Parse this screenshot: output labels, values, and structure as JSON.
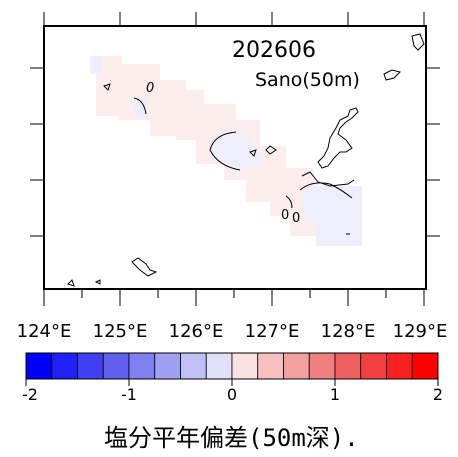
{
  "map": {
    "period": "202606",
    "station": "Sano(50m)",
    "contour_labels": [
      "0",
      "0",
      "0"
    ],
    "lon_ticks": [
      "124°E",
      "125°E",
      "126°E",
      "127°E",
      "128°E",
      "129°E"
    ],
    "anomaly_cells": [
      {
        "lon": 125.5,
        "lat": 27.0,
        "value": -0.15
      },
      {
        "lon": 125.9,
        "lat": 26.7,
        "value": -0.1
      },
      {
        "lon": 126.5,
        "lat": 25.9,
        "value": -0.12
      },
      {
        "lon": 127.5,
        "lat": 26.0,
        "value": -0.1
      },
      {
        "lon": 128.3,
        "lat": 25.2,
        "value": -0.08
      },
      {
        "lon": 126.2,
        "lat": 26.6,
        "value": 0.05
      },
      {
        "lon": 127.0,
        "lat": 25.7,
        "value": 0.06
      },
      {
        "lon": 127.9,
        "lat": 25.1,
        "value": 0.06
      }
    ]
  },
  "colorbar": {
    "min": -2,
    "max": 2,
    "step": 0.25,
    "tick_labels": [
      "-2",
      "-1",
      "0",
      "1",
      "2"
    ],
    "colors": [
      "#0000ff",
      "#2020f8",
      "#4040f2",
      "#6060ee",
      "#8080f0",
      "#a0a0f2",
      "#c0c0f6",
      "#e0e0fa",
      "#fae0e0",
      "#f6c0c0",
      "#f2a0a0",
      "#f08080",
      "#ee6060",
      "#f24040",
      "#f82020",
      "#ff0000"
    ]
  },
  "caption": "塩分平年偏差(50m深)."
}
